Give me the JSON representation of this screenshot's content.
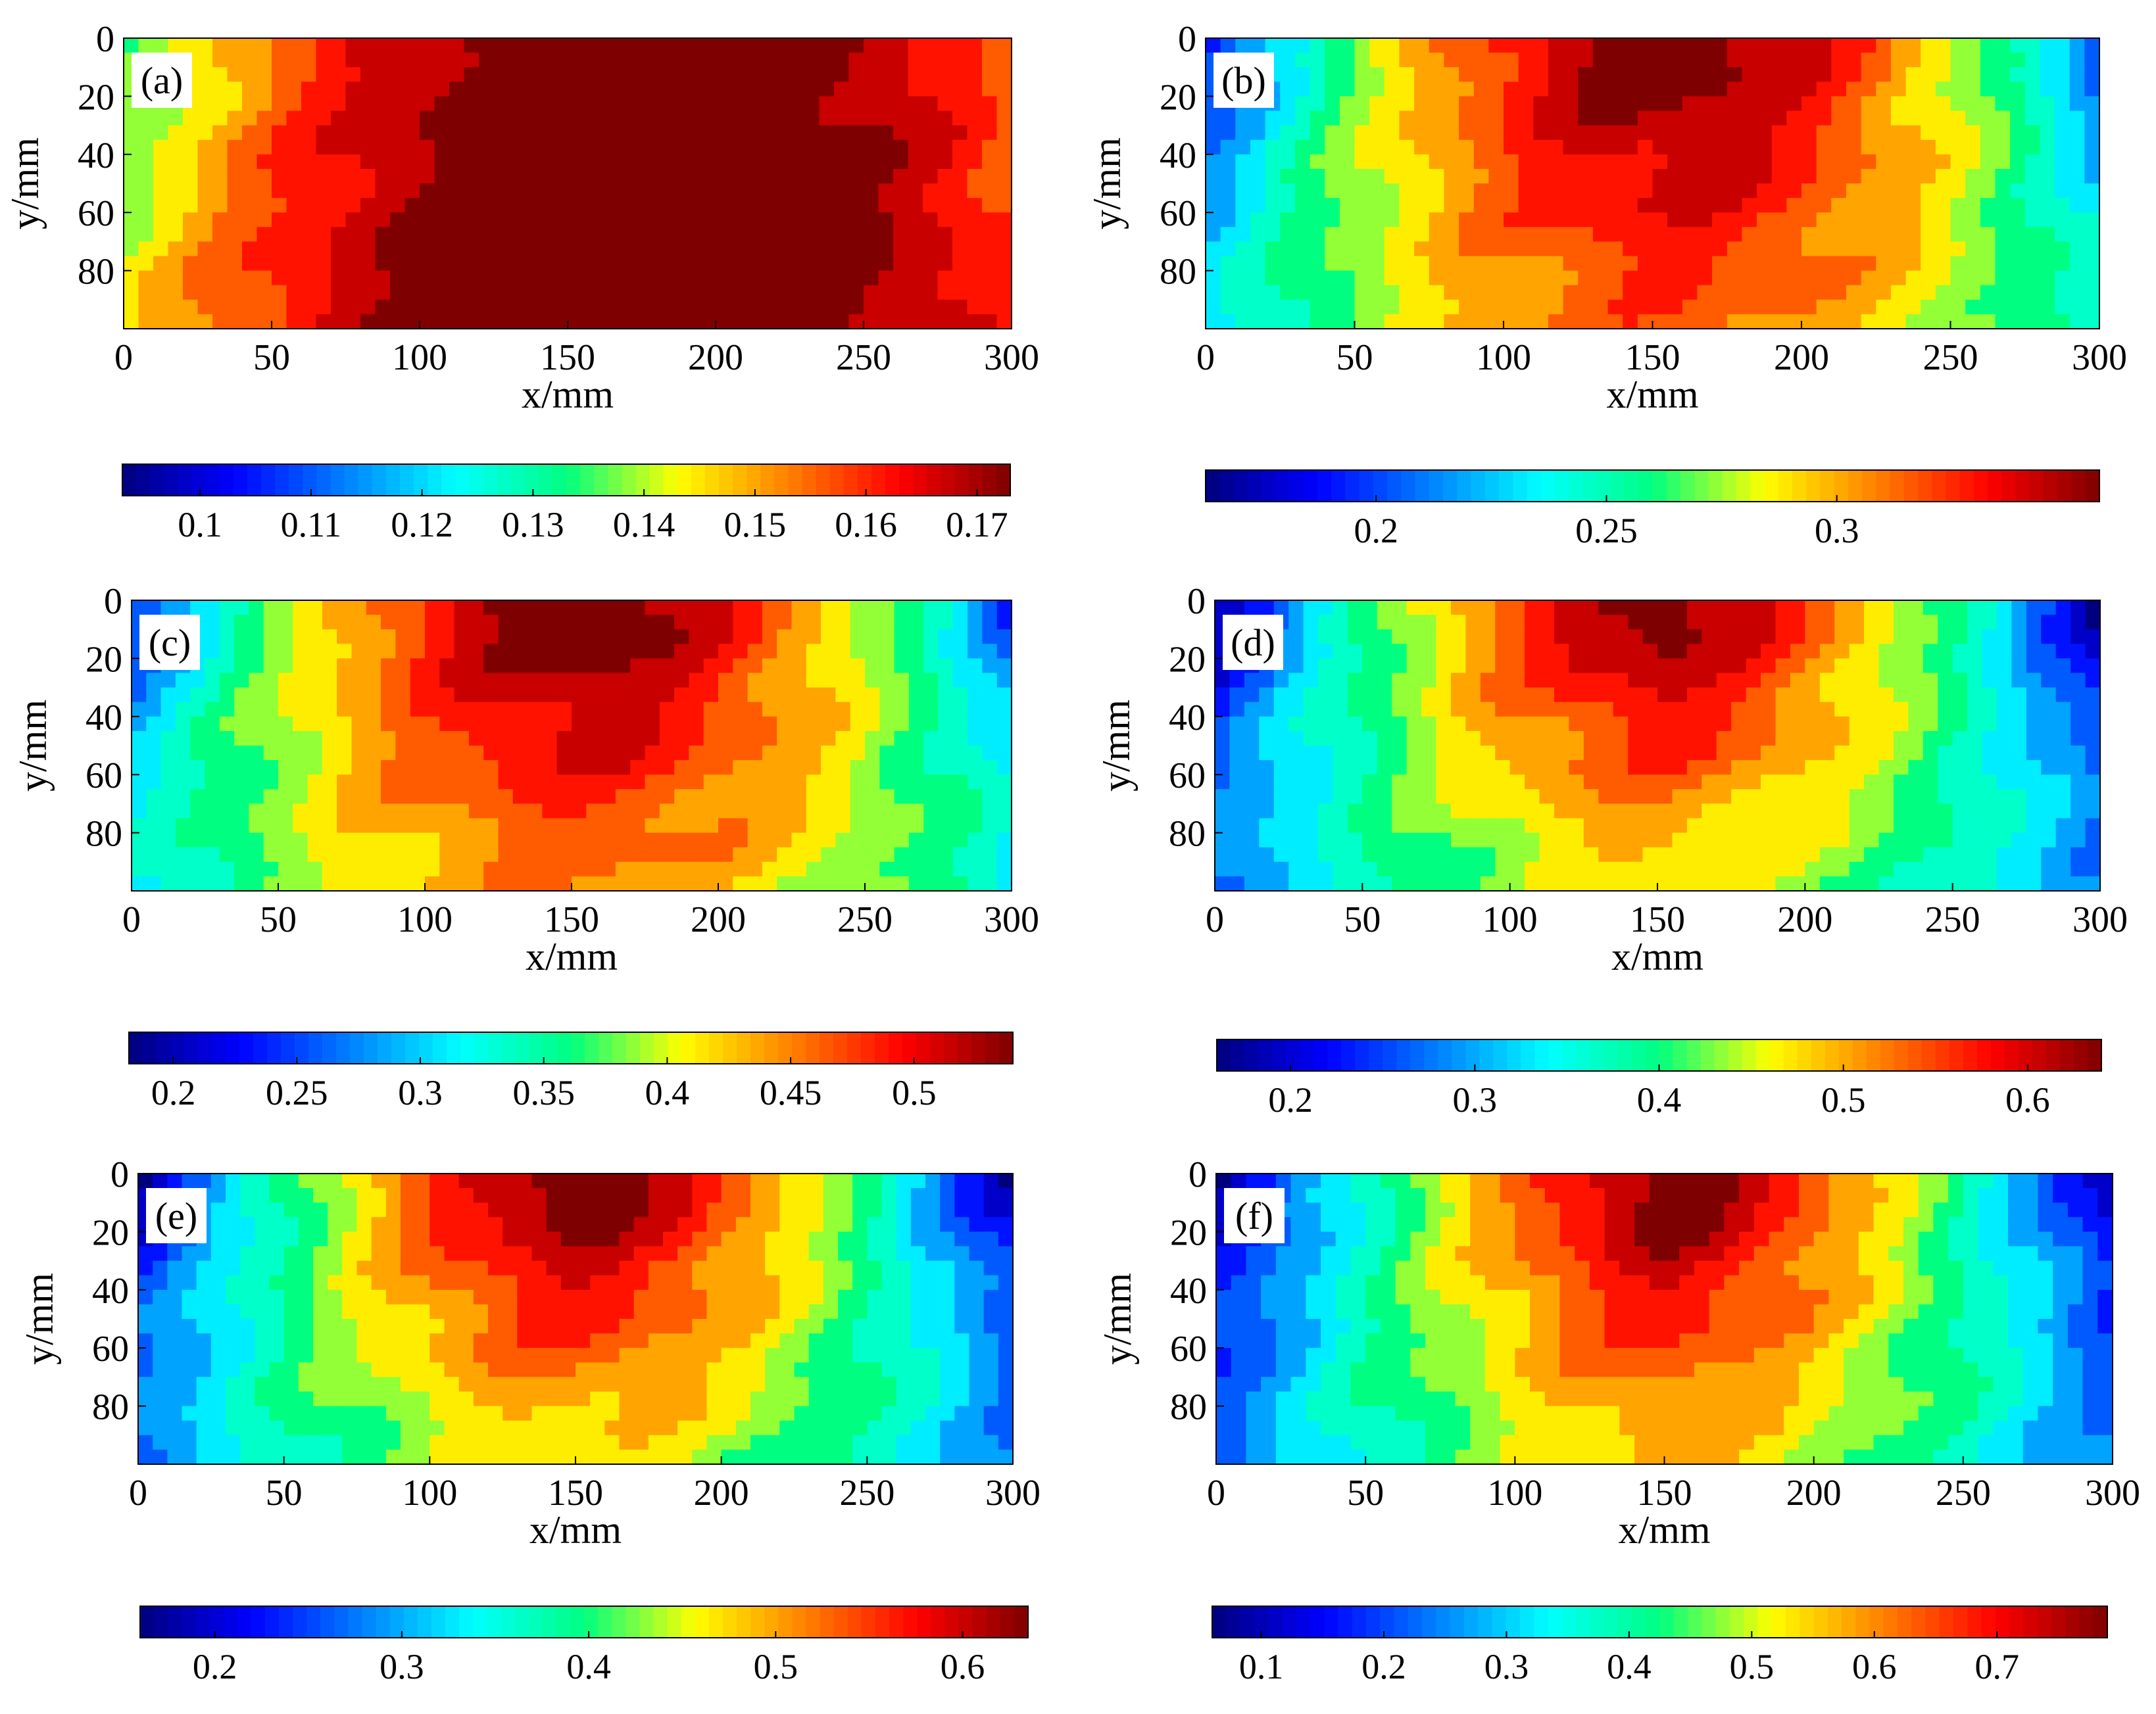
{
  "chart_data": [
    {
      "type": "heatmap",
      "panel": "(a)",
      "xlabel": "x/mm",
      "ylabel": "y/mm",
      "xlim": [
        0,
        300
      ],
      "ylim": [
        0,
        100
      ],
      "xticks": [
        "0",
        "50",
        "100",
        "150",
        "200",
        "250",
        "300"
      ],
      "yticks": [
        "0",
        "20",
        "40",
        "60",
        "80"
      ],
      "colorbar": {
        "min": 0.093,
        "max": 0.173,
        "ticks": [
          0.1,
          0.11,
          0.12,
          0.13,
          0.14,
          0.15,
          0.16,
          0.17
        ],
        "tick_labels": [
          "0.1",
          "0.11",
          "0.12",
          "0.13",
          "0.14",
          "0.15",
          "0.16",
          "0.17"
        ]
      },
      "field": {
        "center_x": 175,
        "half_width": 230,
        "power": 1.8,
        "depth_bulge": 0.2,
        "bulge_shift": 0,
        "v_min": 0.1,
        "v_max": 0.18
      }
    },
    {
      "type": "heatmap",
      "panel": "(b)",
      "xlabel": "x/mm",
      "ylabel": "y/mm",
      "xlim": [
        0,
        300
      ],
      "ylim": [
        0,
        100
      ],
      "xticks": [
        "0",
        "50",
        "100",
        "150",
        "200",
        "250",
        "300"
      ],
      "yticks": [
        "0",
        "20",
        "40",
        "60",
        "80"
      ],
      "colorbar": {
        "min": 0.163,
        "max": 0.357,
        "ticks": [
          0.2,
          0.25,
          0.3
        ],
        "tick_labels": [
          "0.2",
          "0.25",
          "0.3"
        ]
      },
      "field": {
        "center_x": 155,
        "half_width": 165,
        "power": 1.6,
        "depth_bulge": 0.35,
        "bulge_shift": 0.25,
        "v_min": 0.16,
        "v_max": 0.365
      }
    },
    {
      "type": "heatmap",
      "panel": "(c)",
      "xlabel": "x/mm",
      "ylabel": "y/mm",
      "xlim": [
        0,
        300
      ],
      "ylim": [
        0,
        100
      ],
      "xticks": [
        "0",
        "50",
        "100",
        "150",
        "200",
        "250",
        "300"
      ],
      "yticks": [
        "0",
        "20",
        "40",
        "60",
        "80"
      ],
      "colorbar": {
        "min": 0.182,
        "max": 0.54,
        "ticks": [
          0.2,
          0.25,
          0.3,
          0.35,
          0.4,
          0.45,
          0.5
        ],
        "tick_labels": [
          "0.2",
          "0.25",
          "0.3",
          "0.35",
          "0.4",
          "0.45",
          "0.5"
        ]
      },
      "field": {
        "center_x": 152,
        "half_width": 165,
        "power": 1.5,
        "depth_bulge": 0.45,
        "bulge_shift": 0.3,
        "v_min": 0.18,
        "v_max": 0.56
      }
    },
    {
      "type": "heatmap",
      "panel": "(d)",
      "xlabel": "x/mm",
      "ylabel": "y/mm",
      "xlim": [
        0,
        300
      ],
      "ylim": [
        0,
        100
      ],
      "xticks": [
        "0",
        "50",
        "100",
        "150",
        "200",
        "250",
        "300"
      ],
      "yticks": [
        "0",
        "20",
        "40",
        "60",
        "80"
      ],
      "colorbar": {
        "min": 0.16,
        "max": 0.64,
        "ticks": [
          0.2,
          0.3,
          0.4,
          0.5,
          0.6
        ],
        "tick_labels": [
          "0.2",
          "0.3",
          "0.4",
          "0.5",
          "0.6"
        ]
      },
      "field": {
        "center_x": 150,
        "half_width": 150,
        "power": 1.4,
        "depth_bulge": 0.4,
        "bulge_shift": 0.4,
        "v_min": 0.16,
        "v_max": 0.66
      }
    },
    {
      "type": "heatmap",
      "panel": "(e)",
      "xlabel": "x/mm",
      "ylabel": "y/mm",
      "xlim": [
        0,
        300
      ],
      "ylim": [
        0,
        100
      ],
      "xticks": [
        "0",
        "50",
        "100",
        "150",
        "200",
        "250",
        "300"
      ],
      "yticks": [
        "0",
        "20",
        "40",
        "60",
        "80"
      ],
      "colorbar": {
        "min": 0.16,
        "max": 0.635,
        "ticks": [
          0.2,
          0.3,
          0.4,
          0.5,
          0.6
        ],
        "tick_labels": [
          "0.2",
          "0.3",
          "0.4",
          "0.5",
          "0.6"
        ]
      },
      "field": {
        "center_x": 150,
        "half_width": 150,
        "power": 1.4,
        "depth_bulge": 0.4,
        "bulge_shift": 0.4,
        "v_min": 0.16,
        "v_max": 0.66
      }
    },
    {
      "type": "heatmap",
      "panel": "(f)",
      "xlabel": "x/mm",
      "ylabel": "y/mm",
      "xlim": [
        0,
        300
      ],
      "ylim": [
        0,
        100
      ],
      "xticks": [
        "0",
        "50",
        "100",
        "150",
        "200",
        "250",
        "300"
      ],
      "yticks": [
        "0",
        "20",
        "40",
        "60",
        "80"
      ],
      "colorbar": {
        "min": 0.06,
        "max": 0.79,
        "ticks": [
          0.1,
          0.2,
          0.3,
          0.4,
          0.5,
          0.6,
          0.7
        ],
        "tick_labels": [
          "0.1",
          "0.2",
          "0.3",
          "0.4",
          "0.5",
          "0.6",
          "0.7"
        ]
      },
      "field": {
        "center_x": 152,
        "half_width": 150,
        "power": 1.3,
        "depth_bulge": 0.35,
        "bulge_shift": 0.35,
        "v_min": 0.06,
        "v_max": 0.82
      }
    }
  ],
  "colormap": [
    "#00007f",
    "#0000ff",
    "#0080ff",
    "#00ffff",
    "#00ff80",
    "#ffff00",
    "#ff8000",
    "#ff0000",
    "#7f0000"
  ]
}
